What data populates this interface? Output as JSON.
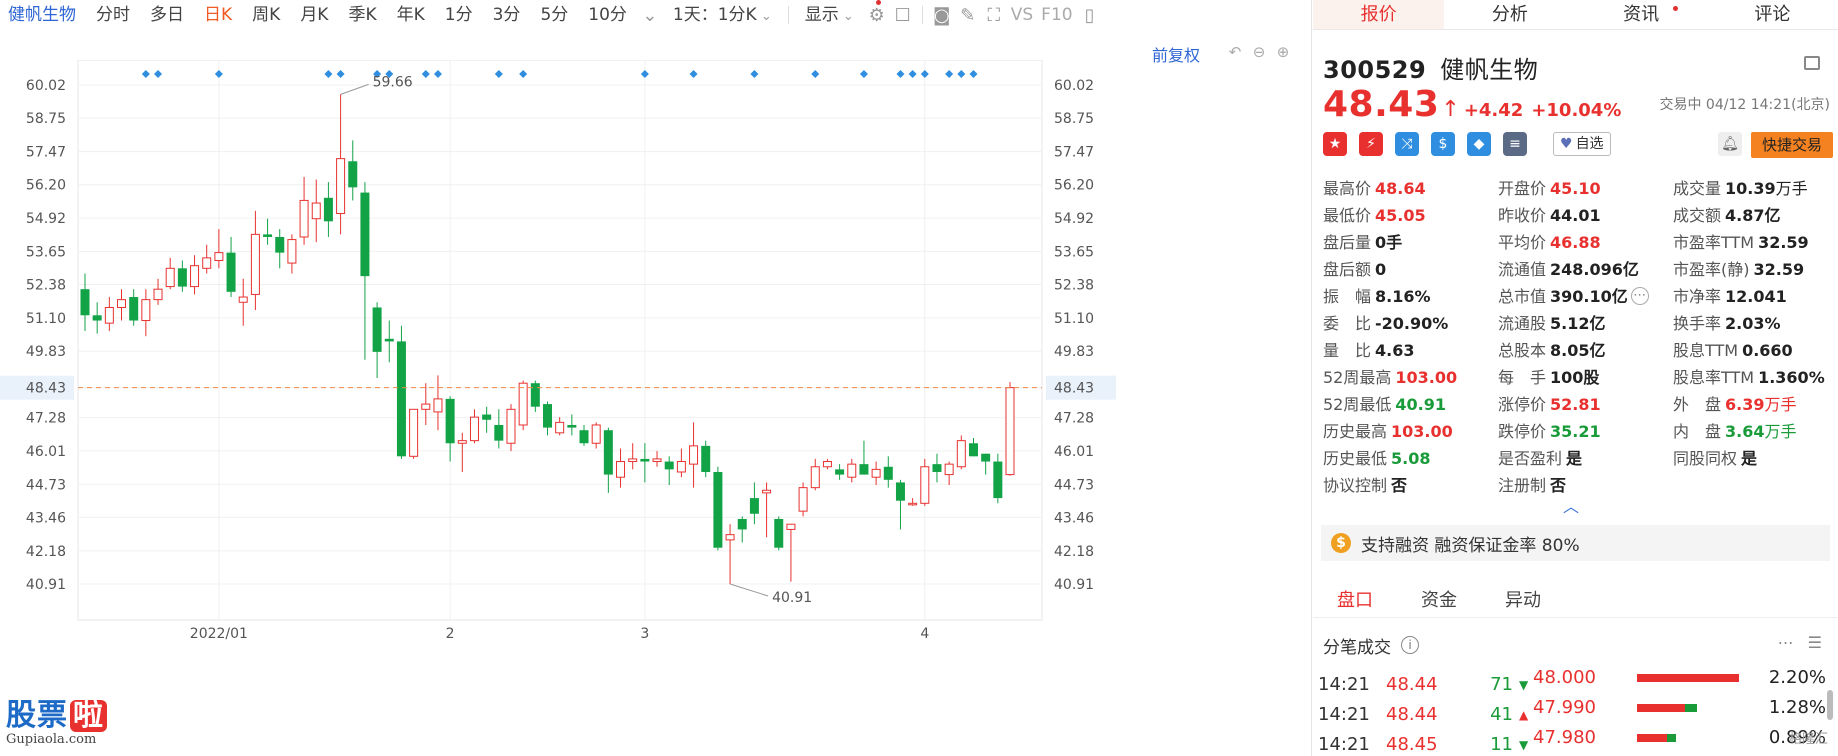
{
  "toolbar": {
    "stock_name": "健帆生物",
    "items": [
      {
        "label": "分时",
        "active": false
      },
      {
        "label": "多日",
        "active": false
      },
      {
        "label": "日K",
        "active": true
      },
      {
        "label": "周K",
        "active": false
      },
      {
        "label": "月K",
        "active": false
      },
      {
        "label": "季K",
        "active": false
      },
      {
        "label": "年K",
        "active": false
      },
      {
        "label": "1分",
        "active": false
      },
      {
        "label": "3分",
        "active": false
      },
      {
        "label": "5分",
        "active": false
      },
      {
        "label": "10分",
        "active": false
      }
    ],
    "period_select": "1天：1分K",
    "display_label": "显示",
    "vs_label": "VS",
    "f10_label": "F10",
    "icons": [
      "more-chevron-icon",
      "gear-icon",
      "checkbox-icon",
      "camera-icon",
      "pencil-icon",
      "fullscreen-icon",
      "sidebar-icon"
    ]
  },
  "chart_header": {
    "fuquan_label": "前复权",
    "controls": [
      "undo-icon",
      "zoom-out-icon",
      "zoom-in-icon"
    ]
  },
  "chart_data": {
    "type": "candlestick",
    "yticks": [
      "60.02",
      "58.75",
      "57.47",
      "56.20",
      "54.92",
      "53.65",
      "52.38",
      "51.10",
      "49.83",
      "48.43",
      "47.28",
      "46.01",
      "44.73",
      "43.46",
      "42.18",
      "40.91"
    ],
    "ylim": [
      40.91,
      60.02
    ],
    "current_price": 48.43,
    "current_label": "48.43",
    "high_label": "59.66",
    "low_label": "40.91",
    "xticks": [
      {
        "label": "2022/01",
        "index": 11
      },
      {
        "label": "2",
        "index": 30
      },
      {
        "label": "3",
        "index": 46
      },
      {
        "label": "4",
        "index": 69
      }
    ],
    "event_marker_indexes": [
      5,
      6,
      11,
      20,
      21,
      24,
      25,
      28,
      29,
      34,
      36,
      46,
      50,
      55,
      60,
      64,
      67,
      68,
      69,
      71,
      72,
      73
    ],
    "up_color": "#e8312f",
    "down_color": "#12a347",
    "candles": [
      [
        52.2,
        52.8,
        50.6,
        51.2
      ],
      [
        51.2,
        51.7,
        50.5,
        51.0
      ],
      [
        50.9,
        51.9,
        50.6,
        51.5
      ],
      [
        51.5,
        52.2,
        51.0,
        51.8
      ],
      [
        51.9,
        52.2,
        50.8,
        51.0
      ],
      [
        51.0,
        52.2,
        50.4,
        51.8
      ],
      [
        51.8,
        52.6,
        51.6,
        52.2
      ],
      [
        52.3,
        53.4,
        52.2,
        53.0
      ],
      [
        53.0,
        53.3,
        52.1,
        52.3
      ],
      [
        52.3,
        53.5,
        52.0,
        53.1
      ],
      [
        53.0,
        53.9,
        52.8,
        53.4
      ],
      [
        53.3,
        54.5,
        53.0,
        53.6
      ],
      [
        53.6,
        54.2,
        51.9,
        52.1
      ],
      [
        51.7,
        52.6,
        50.8,
        51.9
      ],
      [
        52.0,
        55.2,
        51.4,
        54.3
      ],
      [
        54.3,
        54.9,
        53.9,
        54.2
      ],
      [
        54.2,
        54.5,
        53.0,
        53.6
      ],
      [
        53.2,
        54.3,
        52.8,
        54.1
      ],
      [
        54.2,
        56.5,
        53.9,
        55.6
      ],
      [
        54.9,
        56.4,
        54.0,
        55.5
      ],
      [
        55.7,
        56.3,
        54.2,
        54.8
      ],
      [
        55.1,
        59.66,
        54.3,
        57.2
      ],
      [
        57.1,
        57.9,
        55.6,
        56.1
      ],
      [
        55.9,
        56.3,
        49.5,
        52.7
      ],
      [
        51.5,
        51.7,
        48.8,
        49.8
      ],
      [
        50.3,
        51.0,
        49.4,
        50.2
      ],
      [
        50.2,
        50.8,
        45.7,
        45.8
      ],
      [
        45.8,
        47.6,
        45.7,
        47.6
      ],
      [
        47.6,
        48.6,
        47.0,
        47.8
      ],
      [
        47.5,
        48.9,
        46.8,
        48.0
      ],
      [
        48.0,
        48.1,
        45.6,
        46.3
      ],
      [
        46.3,
        46.7,
        45.2,
        46.4
      ],
      [
        46.4,
        47.6,
        46.3,
        47.3
      ],
      [
        47.4,
        47.7,
        46.7,
        47.2
      ],
      [
        47.0,
        47.6,
        46.1,
        46.4
      ],
      [
        46.3,
        47.8,
        46.0,
        47.6
      ],
      [
        47.0,
        48.7,
        46.8,
        48.6
      ],
      [
        48.6,
        48.7,
        47.5,
        47.7
      ],
      [
        47.8,
        47.9,
        46.6,
        46.9
      ],
      [
        46.7,
        47.3,
        46.6,
        47.1
      ],
      [
        47.0,
        47.4,
        46.6,
        46.9
      ],
      [
        46.8,
        47.0,
        46.2,
        46.3
      ],
      [
        46.3,
        47.1,
        46.1,
        47.0
      ],
      [
        46.8,
        46.9,
        44.4,
        45.1
      ],
      [
        45.0,
        46.1,
        44.6,
        45.6
      ],
      [
        45.6,
        46.3,
        45.3,
        45.7
      ],
      [
        45.7,
        46.3,
        44.8,
        45.6
      ],
      [
        45.6,
        46.0,
        45.4,
        45.7
      ],
      [
        45.6,
        45.8,
        44.7,
        45.3
      ],
      [
        45.2,
        46.1,
        45.0,
        45.6
      ],
      [
        45.5,
        47.1,
        44.6,
        46.2
      ],
      [
        46.2,
        46.4,
        45.0,
        45.2
      ],
      [
        45.2,
        45.4,
        42.2,
        42.3
      ],
      [
        42.6,
        43.2,
        40.91,
        42.8
      ],
      [
        43.4,
        43.5,
        42.5,
        43.0
      ],
      [
        44.2,
        44.8,
        43.2,
        43.6
      ],
      [
        44.4,
        44.8,
        42.7,
        44.5
      ],
      [
        43.4,
        43.5,
        42.2,
        42.3
      ],
      [
        43.0,
        43.2,
        41.0,
        43.2
      ],
      [
        43.7,
        44.8,
        43.5,
        44.6
      ],
      [
        44.6,
        45.7,
        44.5,
        45.4
      ],
      [
        45.4,
        45.7,
        45.3,
        45.6
      ],
      [
        45.3,
        45.5,
        44.9,
        45.1
      ],
      [
        45.0,
        45.7,
        44.8,
        45.5
      ],
      [
        45.5,
        46.4,
        45.1,
        45.1
      ],
      [
        45.0,
        45.6,
        44.7,
        45.3
      ],
      [
        45.4,
        45.8,
        44.6,
        44.9
      ],
      [
        44.8,
        44.9,
        43.0,
        44.1
      ],
      [
        44.0,
        44.2,
        43.9,
        44.0
      ],
      [
        44.0,
        45.7,
        43.9,
        45.4
      ],
      [
        45.5,
        45.9,
        44.8,
        45.2
      ],
      [
        45.1,
        45.6,
        44.7,
        45.5
      ],
      [
        45.4,
        46.6,
        45.3,
        46.4
      ],
      [
        46.3,
        46.5,
        45.8,
        45.8
      ],
      [
        45.9,
        45.9,
        45.1,
        45.6
      ],
      [
        45.6,
        45.9,
        44.0,
        44.2
      ],
      [
        45.1,
        48.64,
        45.05,
        48.43
      ]
    ]
  },
  "logo": {
    "text_main": "股票",
    "text_accent": "啦",
    "url": "Gupiaola.com"
  },
  "right_tabs": [
    {
      "label": "报价",
      "active": true,
      "dot": false
    },
    {
      "label": "分析",
      "active": false,
      "dot": false
    },
    {
      "label": "资讯",
      "active": false,
      "dot": true
    },
    {
      "label": "评论",
      "active": false,
      "dot": false
    }
  ],
  "quote": {
    "code": "300529",
    "name": "健帆生物",
    "price": "48.43",
    "arrow": "↑",
    "change": "+4.42",
    "change_pct": "+10.04%",
    "trade_time": "交易中 04/12 14:21(北京)",
    "zixuan_label": "自选",
    "quick_trade_label": "快捷交易",
    "badge_icons": [
      {
        "name": "china-flag-icon",
        "color": "#e8312f",
        "glyph": "★"
      },
      {
        "name": "runner-icon",
        "color": "#e8312f",
        "glyph": "⚡"
      },
      {
        "name": "shuffle-icon",
        "color": "#2f8ee0",
        "glyph": "⤨"
      },
      {
        "name": "dollar-icon",
        "color": "#2f8ee0",
        "glyph": "$"
      },
      {
        "name": "tag-icon",
        "color": "#2f8ee0",
        "glyph": "◆"
      },
      {
        "name": "notice-icon",
        "color": "#5b6a85",
        "glyph": "≡"
      }
    ]
  },
  "stats": [
    [
      {
        "label": "最高价",
        "value": "48.64",
        "tone": "up"
      },
      {
        "label": "开盘价",
        "value": "45.10",
        "tone": "up"
      },
      {
        "label": "成交量",
        "value": "10.39",
        "unit": "万手",
        "tone": ""
      }
    ],
    [
      {
        "label": "最低价",
        "value": "45.05",
        "tone": "up"
      },
      {
        "label": "昨收价",
        "value": "44.01",
        "tone": ""
      },
      {
        "label": "成交额",
        "value": "4.87亿",
        "tone": ""
      }
    ],
    [
      {
        "label": "盘后量",
        "value": "0手",
        "tone": ""
      },
      {
        "label": "平均价",
        "value": "46.88",
        "tone": "up"
      },
      {
        "label": "市盈率TTM",
        "value": "32.59",
        "tone": ""
      }
    ],
    [
      {
        "label": "盘后额",
        "value": "0",
        "tone": ""
      },
      {
        "label": "流通值",
        "value": "248.096亿",
        "tone": ""
      },
      {
        "label": "市盈率(静)",
        "value": "32.59",
        "tone": ""
      }
    ],
    [
      {
        "label": "振　幅",
        "value": "8.16%",
        "tone": ""
      },
      {
        "label": "总市值",
        "value": "390.10亿",
        "tone": "",
        "more": true
      },
      {
        "label": "市净率",
        "value": "12.041",
        "tone": ""
      }
    ],
    [
      {
        "label": "委　比",
        "value": "-20.90%",
        "tone": ""
      },
      {
        "label": "流通股",
        "value": "5.12亿",
        "tone": ""
      },
      {
        "label": "换手率",
        "value": "2.03%",
        "tone": ""
      }
    ],
    [
      {
        "label": "量　比",
        "value": "4.63",
        "tone": ""
      },
      {
        "label": "总股本",
        "value": "8.05亿",
        "tone": ""
      },
      {
        "label": "股息TTM",
        "value": "0.660",
        "tone": ""
      }
    ],
    [
      {
        "label": "52周最高",
        "value": "103.00",
        "tone": "up"
      },
      {
        "label": "每　手",
        "value": "100股",
        "tone": ""
      },
      {
        "label": "股息率TTM",
        "value": "1.360%",
        "tone": ""
      }
    ],
    [
      {
        "label": "52周最低",
        "value": "40.91",
        "tone": "down"
      },
      {
        "label": "涨停价",
        "value": "52.81",
        "tone": "up"
      },
      {
        "label": "外　盘",
        "value": "6.39",
        "unit": "万手",
        "tone": "up"
      }
    ],
    [
      {
        "label": "历史最高",
        "value": "103.00",
        "tone": "up"
      },
      {
        "label": "跌停价",
        "value": "35.21",
        "tone": "down"
      },
      {
        "label": "内　盘",
        "value": "3.64",
        "unit": "万手",
        "tone": "down"
      }
    ],
    [
      {
        "label": "历史最低",
        "value": "5.08",
        "tone": "down"
      },
      {
        "label": "是否盈利",
        "value": "是",
        "tone": ""
      },
      {
        "label": "同股同权",
        "value": "是",
        "tone": ""
      }
    ],
    [
      {
        "label": "协议控制",
        "value": "否",
        "tone": ""
      },
      {
        "label": "注册制",
        "value": "否",
        "tone": ""
      },
      {
        "label": "",
        "value": "",
        "tone": ""
      }
    ]
  ],
  "margin": {
    "icon": "$",
    "text": "支持融资 融资保证金率 80%"
  },
  "sub_tabs": [
    {
      "label": "盘口",
      "active": true
    },
    {
      "label": "资金",
      "active": false
    },
    {
      "label": "异动",
      "active": false
    }
  ],
  "tick_header": {
    "title": "分笔成交"
  },
  "ticks": [
    {
      "time": "14:21",
      "price": "48.44",
      "vol": "71",
      "dir": "▼",
      "dirclass": "dn"
    },
    {
      "time": "14:21",
      "price": "48.44",
      "vol": "41",
      "dir": "▲",
      "dirclass": "upc"
    },
    {
      "time": "14:21",
      "price": "48.45",
      "vol": "11",
      "dir": "▼",
      "dirclass": "dn"
    }
  ],
  "depth": [
    {
      "level": "48.000",
      "red": 0.85,
      "green": 0.0,
      "pct": "2.20%"
    },
    {
      "level": "47.990",
      "red": 0.4,
      "green": 0.2,
      "pct": "1.28%"
    },
    {
      "level": "47.980",
      "red": 0.25,
      "green": 0.15,
      "pct": "0.89%"
    }
  ],
  "watermark": "格隆汇"
}
